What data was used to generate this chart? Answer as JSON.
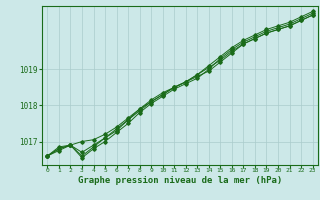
{
  "title": "Graphe pression niveau de la mer (hPa)",
  "background_color": "#cce8e8",
  "grid_color": "#aacccc",
  "line_color": "#1a6b1a",
  "hours": [
    0,
    1,
    2,
    3,
    4,
    5,
    6,
    7,
    8,
    9,
    10,
    11,
    12,
    13,
    14,
    15,
    16,
    17,
    18,
    19,
    20,
    21,
    22,
    23
  ],
  "line1": [
    1016.6,
    1016.8,
    1016.9,
    1016.7,
    1016.9,
    1017.1,
    1017.3,
    1017.6,
    1017.9,
    1018.1,
    1018.3,
    1018.5,
    1018.65,
    1018.8,
    1018.95,
    1019.2,
    1019.45,
    1019.7,
    1019.85,
    1020.0,
    1020.1,
    1020.2,
    1020.35,
    1020.5
  ],
  "line2": [
    1016.6,
    1016.75,
    1016.9,
    1016.55,
    1016.8,
    1017.0,
    1017.25,
    1017.5,
    1017.8,
    1018.05,
    1018.25,
    1018.45,
    1018.6,
    1018.75,
    1019.0,
    1019.3,
    1019.55,
    1019.75,
    1019.9,
    1020.05,
    1020.15,
    1020.25,
    1020.4,
    1020.55
  ],
  "line3": [
    1016.6,
    1016.8,
    1016.9,
    1017.0,
    1017.05,
    1017.2,
    1017.4,
    1017.65,
    1017.9,
    1018.15,
    1018.35,
    1018.5,
    1018.65,
    1018.85,
    1019.05,
    1019.25,
    1019.5,
    1019.7,
    1019.85,
    1020.0,
    1020.1,
    1020.2,
    1020.35,
    1020.5
  ],
  "line4": [
    1016.6,
    1016.85,
    1016.9,
    1016.6,
    1016.85,
    1017.1,
    1017.35,
    1017.6,
    1017.85,
    1018.1,
    1018.3,
    1018.5,
    1018.65,
    1018.85,
    1019.1,
    1019.35,
    1019.6,
    1019.8,
    1019.95,
    1020.1,
    1020.2,
    1020.3,
    1020.45,
    1020.6
  ],
  "ylim": [
    1016.35,
    1020.75
  ],
  "yticks": [
    1017,
    1018,
    1019
  ],
  "title_fontsize": 6.5
}
